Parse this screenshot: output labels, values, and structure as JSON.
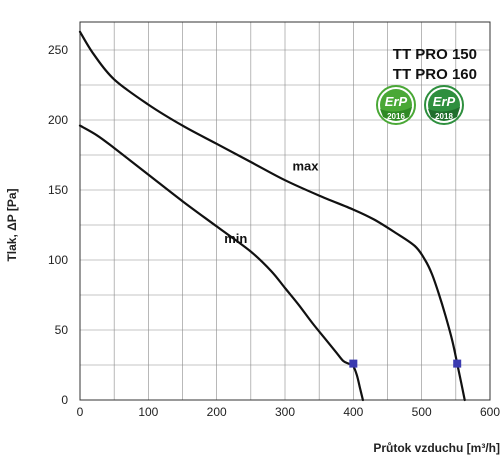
{
  "chart_data": {
    "type": "line",
    "title": "",
    "xlabel": "Průtok vzduchu [m³/h]",
    "ylabel": "Tlak, ΔP [Pa]",
    "xlim": [
      0,
      600
    ],
    "ylim": [
      0,
      270
    ],
    "xticks": [
      0,
      100,
      200,
      300,
      400,
      500,
      600
    ],
    "yticks": [
      0,
      50,
      100,
      150,
      200,
      250
    ],
    "grid": true,
    "series": [
      {
        "name": "max",
        "color": "#111111",
        "x": [
          0,
          20,
          50,
          100,
          150,
          200,
          250,
          300,
          350,
          400,
          430,
          460,
          490,
          505,
          515,
          525,
          535,
          545,
          552,
          558,
          563
        ],
        "y": [
          263,
          247,
          229,
          211,
          196,
          183,
          170,
          157,
          146,
          136,
          129,
          120,
          110,
          100,
          90,
          76,
          60,
          42,
          26,
          12,
          0
        ]
      },
      {
        "name": "min",
        "color": "#111111",
        "x": [
          0,
          25,
          50,
          100,
          150,
          200,
          250,
          280,
          300,
          320,
          340,
          360,
          375,
          385,
          393,
          399,
          405,
          410,
          414
        ],
        "y": [
          196,
          189,
          180,
          161,
          142,
          124,
          106,
          92,
          80,
          68,
          55,
          43,
          34,
          28,
          26,
          25,
          18,
          8,
          0
        ]
      }
    ],
    "markers": [
      {
        "series": "min",
        "x": 400,
        "y": 26,
        "color": "#3b3bb0"
      },
      {
        "series": "max",
        "x": 552,
        "y": 26,
        "color": "#3b3bb0"
      }
    ],
    "annotations": [
      {
        "text": "max",
        "x": 330,
        "y": 164
      },
      {
        "text": "min",
        "x": 228,
        "y": 112
      }
    ]
  },
  "models": [
    "TT PRO 150",
    "TT PRO 160"
  ],
  "badges": [
    {
      "label": "ErP",
      "year": "2016",
      "color": "#4aa836",
      "band": "#2f8a24"
    },
    {
      "label": "ErP",
      "year": "2018",
      "color": "#2e8f3e",
      "band": "#1f6e2c"
    }
  ]
}
